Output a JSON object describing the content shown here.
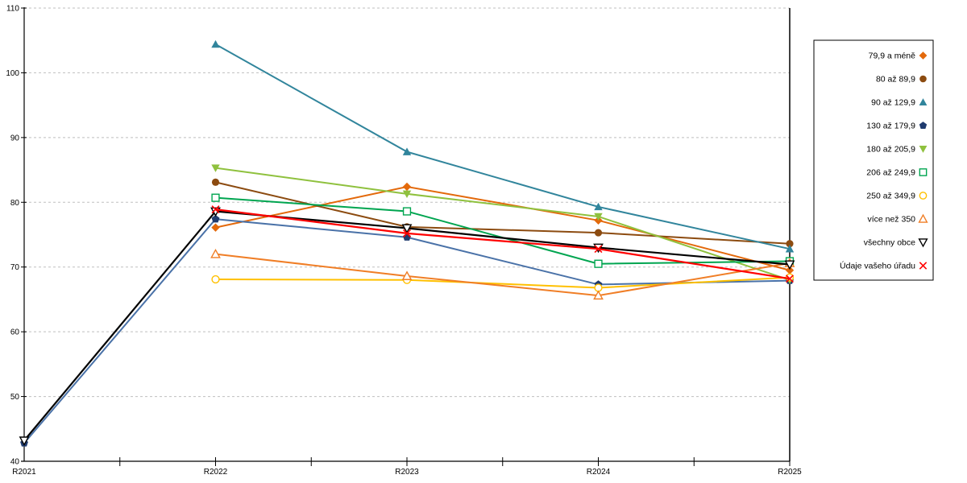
{
  "chart_data": {
    "type": "line",
    "title": "",
    "xlabel": "",
    "ylabel": "",
    "x_categories": [
      "R2021",
      "R2022",
      "R2023",
      "R2024",
      "R2025"
    ],
    "ylim": [
      40,
      110
    ],
    "ytick_step": 10,
    "grid": "horizontal-dashed",
    "gridline_color": "#BFBFBF",
    "axis_color": "#000000",
    "legend_position": "right",
    "series": [
      {
        "name": "79,9 a méně",
        "color": "#E3690B",
        "marker": "diamond-filled",
        "values": [
          null,
          76.1,
          82.4,
          77.2,
          69.5
        ]
      },
      {
        "name": "80 až 89,9",
        "color": "#8C4B10",
        "marker": "circle-filled",
        "values": [
          null,
          83.1,
          76.2,
          75.3,
          73.6
        ]
      },
      {
        "name": "90 až 129,9",
        "color": "#31859C",
        "marker": "triangle-up-filled",
        "values": [
          null,
          104.4,
          87.8,
          79.3,
          72.8
        ]
      },
      {
        "name": "130 až 179,9",
        "color": "#4A72A8",
        "marker_color": "#1F3B6E",
        "marker": "pentagon-filled",
        "values": [
          42.8,
          77.4,
          74.6,
          67.3,
          67.9
        ]
      },
      {
        "name": "180 až 205,9",
        "color": "#8FC13E",
        "marker": "triangle-down-filled",
        "values": [
          null,
          85.3,
          81.3,
          77.8,
          68.0
        ]
      },
      {
        "name": "206 až 249,9",
        "color": "#00A550",
        "marker": "square-open",
        "values": [
          null,
          80.7,
          78.6,
          70.5,
          70.9
        ]
      },
      {
        "name": "250 až 349,9",
        "color": "#FFC000",
        "marker": "circle-open",
        "values": [
          null,
          68.1,
          68.0,
          66.8,
          68.4
        ]
      },
      {
        "name": "více než 350",
        "color": "#F07E26",
        "marker": "triangle-up-open",
        "values": [
          null,
          72.0,
          68.6,
          65.6,
          70.6
        ]
      },
      {
        "name": "všechny obce",
        "color": "#000000",
        "marker": "triangle-down-open",
        "values": [
          43.2,
          78.6,
          76.0,
          73.0,
          70.4
        ]
      },
      {
        "name": "Údaje vašeho úřadu",
        "color": "#FF0000",
        "marker": "x",
        "values": [
          null,
          78.9,
          75.2,
          72.8,
          68.2
        ]
      }
    ]
  }
}
